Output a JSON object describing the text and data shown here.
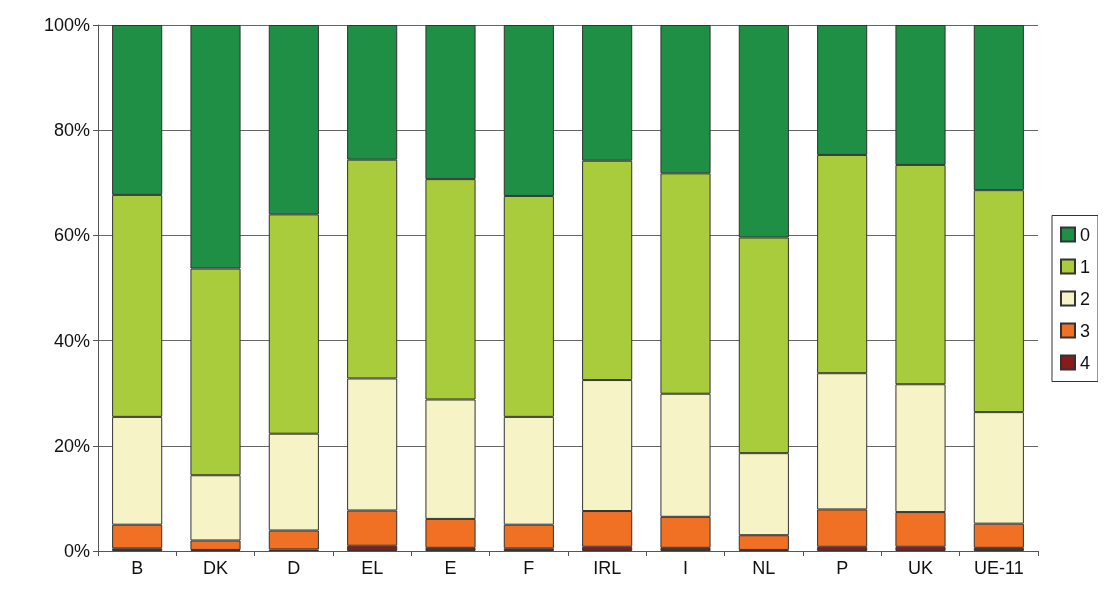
{
  "chart_data": {
    "type": "bar",
    "stacked": true,
    "categories": [
      "B",
      "DK",
      "D",
      "EL",
      "E",
      "F",
      "IRL",
      "I",
      "NL",
      "P",
      "UK",
      "UE-11"
    ],
    "series": [
      {
        "name": "4",
        "color": "#8b1a1a",
        "values": [
          0.5,
          0.2,
          0.3,
          1.0,
          0.6,
          0.5,
          0.8,
          0.6,
          0.2,
          0.8,
          0.8,
          0.6
        ]
      },
      {
        "name": "3",
        "color": "#f07024",
        "values": [
          4.5,
          1.8,
          3.6,
          6.7,
          5.5,
          4.5,
          6.8,
          5.9,
          2.8,
          7.1,
          6.6,
          4.6
        ]
      },
      {
        "name": "2",
        "color": "#f6f4c6",
        "values": [
          20.5,
          12.4,
          18.4,
          25.1,
          22.7,
          20.5,
          24.9,
          23.4,
          15.6,
          25.9,
          24.3,
          21.2
        ]
      },
      {
        "name": "1",
        "color": "#a8cc3c",
        "values": [
          42.2,
          39.3,
          41.7,
          41.6,
          41.9,
          42.0,
          41.7,
          41.9,
          41.0,
          41.5,
          41.7,
          42.2
        ]
      },
      {
        "name": "0",
        "color": "#1f8f45",
        "values": [
          32.3,
          46.3,
          36.0,
          25.6,
          29.3,
          32.5,
          25.8,
          28.2,
          40.4,
          24.7,
          26.6,
          31.4
        ]
      }
    ],
    "ylim": [
      0,
      100
    ],
    "yticks": [
      {
        "value": 0,
        "label": "0%"
      },
      {
        "value": 20,
        "label": "20%"
      },
      {
        "value": 40,
        "label": "40%"
      },
      {
        "value": 60,
        "label": "60%"
      },
      {
        "value": 80,
        "label": "80%"
      },
      {
        "value": 100,
        "label": "100%"
      }
    ],
    "grid": "y",
    "legend": "right"
  }
}
